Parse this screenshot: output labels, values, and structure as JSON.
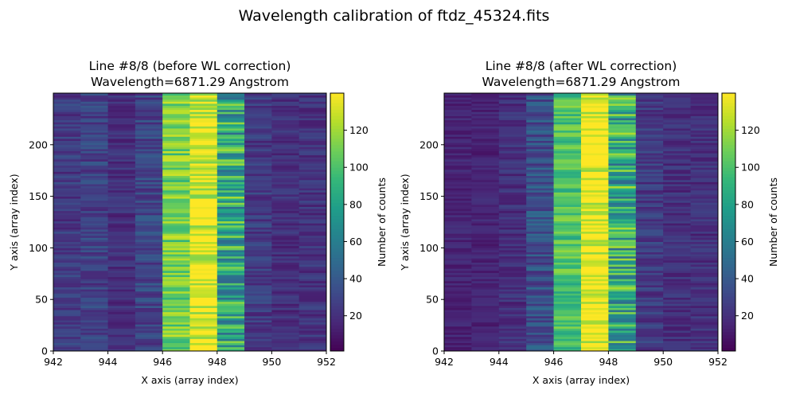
{
  "figure_title": "Wavelength calibration of ftdz_45324.fits",
  "colormap": "viridis",
  "colormap_stops": [
    "#440154",
    "#482878",
    "#3e4989",
    "#31688e",
    "#26828e",
    "#1f9e89",
    "#35b779",
    "#6ece58",
    "#b5de2b",
    "#fde725"
  ],
  "chart_data": [
    {
      "type": "heatmap",
      "title_line1": "Line #8/8 (before WL correction)",
      "title_line2": "Wavelength=6871.29 Angstrom",
      "xlabel": "X axis (array index)",
      "ylabel": "Y axis (array index)",
      "xlim": [
        942,
        952
      ],
      "ylim": [
        0,
        250
      ],
      "xticks": [
        "942",
        "944",
        "946",
        "948",
        "950",
        "952"
      ],
      "yticks": [
        "0",
        "50",
        "100",
        "150",
        "200"
      ],
      "column_centers": [
        942.5,
        943.5,
        944.5,
        945.5,
        946.5,
        947.5,
        948.5,
        949.5,
        950.5,
        951.5
      ],
      "column_mean_counts": [
        25,
        28,
        20,
        30,
        110,
        135,
        85,
        25,
        20,
        22
      ],
      "colorbar": {
        "label": "Number of counts",
        "range": [
          1,
          140
        ],
        "ticks": [
          "20",
          "40",
          "60",
          "80",
          "100",
          "120"
        ]
      }
    },
    {
      "type": "heatmap",
      "title_line1": "Line #8/8 (after WL correction)",
      "title_line2": "Wavelength=6871.29 Angstrom",
      "xlabel": "X axis (array index)",
      "ylabel": "Y axis (array index)",
      "xlim": [
        942,
        952
      ],
      "ylim": [
        0,
        250
      ],
      "xticks": [
        "942",
        "944",
        "946",
        "948",
        "950",
        "952"
      ],
      "yticks": [
        "0",
        "50",
        "100",
        "150",
        "200"
      ],
      "column_centers": [
        942.5,
        943.5,
        944.5,
        945.5,
        946.5,
        947.5,
        948.5,
        949.5,
        950.5,
        951.5
      ],
      "column_mean_counts": [
        15,
        15,
        20,
        35,
        100,
        140,
        85,
        25,
        20,
        20
      ],
      "colorbar": {
        "label": "Number of counts",
        "range": [
          1,
          140
        ],
        "ticks": [
          "20",
          "40",
          "60",
          "80",
          "100",
          "120"
        ]
      }
    }
  ]
}
